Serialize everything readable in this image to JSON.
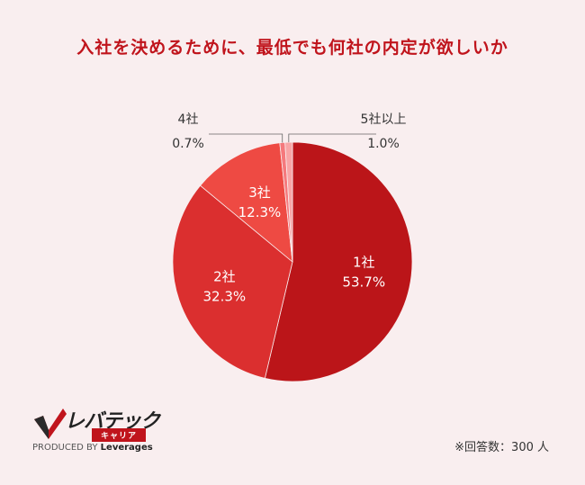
{
  "chart_data": {
    "type": "pie",
    "title": "入社を決めるために、最低でも何社の内定が欲しいか",
    "slices": [
      {
        "label": "1社",
        "value": 53.7,
        "value_label": "53.7%",
        "color": "#bb1519"
      },
      {
        "label": "2社",
        "value": 32.3,
        "value_label": "32.3%",
        "color": "#db2f2f"
      },
      {
        "label": "3社",
        "value": 12.3,
        "value_label": "12.3%",
        "color": "#ee4a43"
      },
      {
        "label": "4社",
        "value": 0.7,
        "value_label": "0.7%",
        "color": "#f5797c"
      },
      {
        "label": "5社以上",
        "value": 1.0,
        "value_label": "1.0%",
        "color": "#f8a5a6"
      }
    ],
    "start": "top",
    "direction": "clockwise"
  },
  "note": "※回答数：300 人",
  "logo": {
    "wordmark": "レバテック",
    "sub": "キャリア",
    "credit_prefix": "PRODUCED BY",
    "credit_brand": "Leverages"
  }
}
